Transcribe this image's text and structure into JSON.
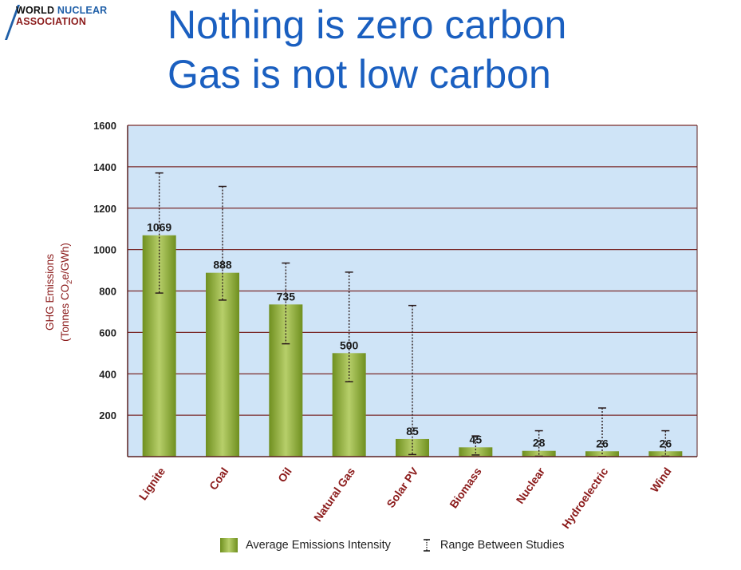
{
  "logo": {
    "line1_a": "WORLD ",
    "line1_b": "NUCLEAR",
    "line2": "ASSOCIATION"
  },
  "title": {
    "line1": "Nothing is zero carbon",
    "line2": "Gas is not low carbon"
  },
  "colors": {
    "title": "#1a5fc0",
    "plot_bg": "#cfe4f7",
    "grid": "#7a2a2a",
    "bar_dark": "#6f8f1f",
    "bar_light": "#b7cf6a",
    "axis_label": "#8b1a1a"
  },
  "chart_data": {
    "type": "bar",
    "ylabel_line1": "GHG Emissions",
    "ylabel_line2_prefix": "(Tonnes CO",
    "ylabel_line2_sub": "2",
    "ylabel_line2_suffix": "e/GWh)",
    "ylim": [
      0,
      1600
    ],
    "yticks": [
      200,
      400,
      600,
      800,
      1000,
      1200,
      1400,
      1600
    ],
    "grid": true,
    "categories": [
      "Lignite",
      "Coal",
      "Oil",
      "Natural Gas",
      "Solar PV",
      "Biomass",
      "Nuclear",
      "Hydroelectric",
      "Wind"
    ],
    "series": [
      {
        "name": "Average Emissions Intensity",
        "values": [
          1069,
          888,
          735,
          500,
          85,
          45,
          28,
          26,
          26
        ]
      }
    ],
    "data_labels": [
      "1069",
      "888",
      "735",
      "500",
      "85",
      "45",
      "28",
      "26",
      "26"
    ],
    "range": {
      "name": "Range Between Studies",
      "low": [
        790,
        756,
        545,
        362,
        10,
        8,
        2,
        1,
        2
      ],
      "high": [
        1370,
        1305,
        935,
        891,
        730,
        100,
        125,
        235,
        125
      ]
    },
    "legend_position": "bottom"
  }
}
